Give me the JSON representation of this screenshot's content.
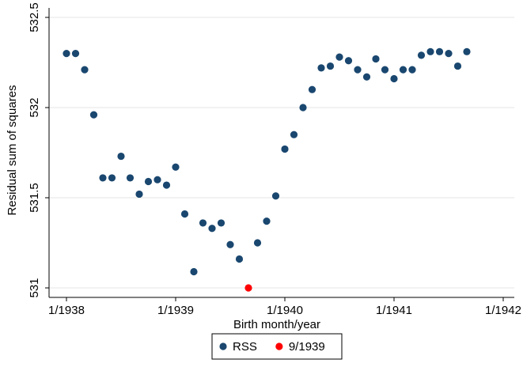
{
  "chart_data": {
    "type": "scatter",
    "x_label": "Birth month/year",
    "y_label": "Residual sum of squares",
    "xlim": [
      "1/1938",
      "1/1942"
    ],
    "xticks": [
      "1/1938",
      "1/1939",
      "1/1940",
      "1/1941",
      "1/1942"
    ],
    "ylim": [
      531,
      532.5
    ],
    "yticks": [
      531,
      531.5,
      532,
      532.5
    ],
    "grid": true,
    "legend": "bottom",
    "series": [
      {
        "name": "RSS",
        "color": "#1a476f",
        "x": [
          "1/1938",
          "2/1938",
          "3/1938",
          "4/1938",
          "5/1938",
          "6/1938",
          "7/1938",
          "8/1938",
          "9/1938",
          "10/1938",
          "11/1938",
          "12/1938",
          "1/1939",
          "2/1939",
          "3/1939",
          "4/1939",
          "5/1939",
          "6/1939",
          "7/1939",
          "8/1939",
          "10/1939",
          "11/1939",
          "12/1939",
          "1/1940",
          "2/1940",
          "3/1940",
          "4/1940",
          "5/1940",
          "6/1940",
          "7/1940",
          "8/1940",
          "9/1940",
          "10/1940",
          "11/1940",
          "12/1940",
          "1/1941",
          "2/1941",
          "3/1941",
          "4/1941",
          "5/1941",
          "6/1941",
          "7/1941",
          "8/1941",
          "9/1941"
        ],
        "values": [
          532.3,
          532.3,
          532.21,
          531.96,
          531.61,
          531.61,
          531.73,
          531.61,
          531.52,
          531.59,
          531.6,
          531.57,
          531.67,
          531.41,
          531.09,
          531.36,
          531.33,
          531.36,
          531.24,
          531.16,
          531.25,
          531.37,
          531.51,
          531.77,
          531.85,
          532.0,
          532.1,
          532.22,
          532.23,
          532.28,
          532.26,
          532.21,
          532.17,
          532.27,
          532.21,
          532.16,
          532.21,
          532.21,
          532.29,
          532.31,
          532.31,
          532.3,
          532.23,
          532.31
        ]
      },
      {
        "name": "9/1939",
        "color": "#ff0000",
        "x": [
          "9/1939"
        ],
        "values": [
          531.0
        ]
      }
    ]
  }
}
